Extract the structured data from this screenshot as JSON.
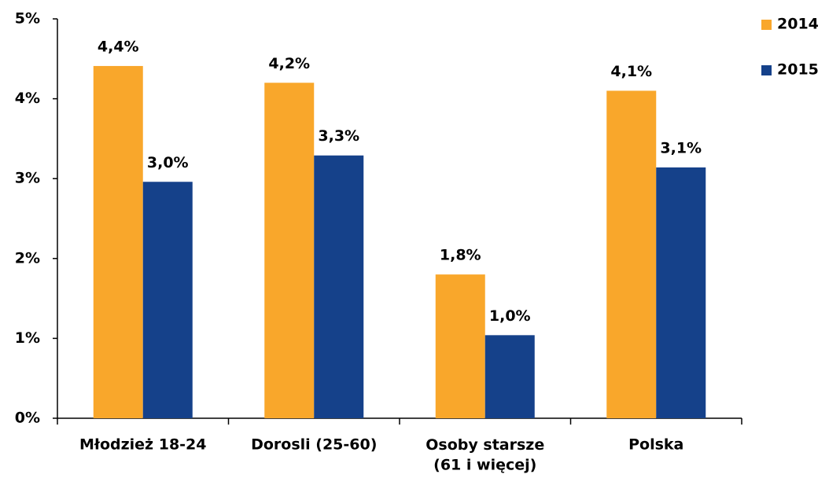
{
  "chart_data": {
    "type": "bar",
    "categories": [
      "Młodzież 18-24",
      "Dorosli (25-60)",
      "Osoby starsze\n(61 i więcej)",
      "Polska"
    ],
    "series": [
      {
        "name": "2014",
        "color": "#f9a72b",
        "values": [
          4.41,
          4.2,
          1.8,
          4.1
        ],
        "value_labels": [
          "4,4%",
          "4,2%",
          "1,8%",
          "4,1%"
        ]
      },
      {
        "name": "2015",
        "color": "#15418a",
        "values": [
          2.96,
          3.29,
          1.04,
          3.14
        ],
        "value_labels": [
          "3,0%",
          "3,3%",
          "1,0%",
          "3,1%"
        ]
      }
    ],
    "ylim": [
      0,
      5
    ],
    "yticks": [
      {
        "value": 0,
        "label": "0%"
      },
      {
        "value": 1,
        "label": "1%"
      },
      {
        "value": 2,
        "label": "2%"
      },
      {
        "value": 3,
        "label": "3%"
      },
      {
        "value": 4,
        "label": "4%"
      },
      {
        "value": 5,
        "label": "5%"
      }
    ],
    "grid": false,
    "legend": "top-right"
  }
}
